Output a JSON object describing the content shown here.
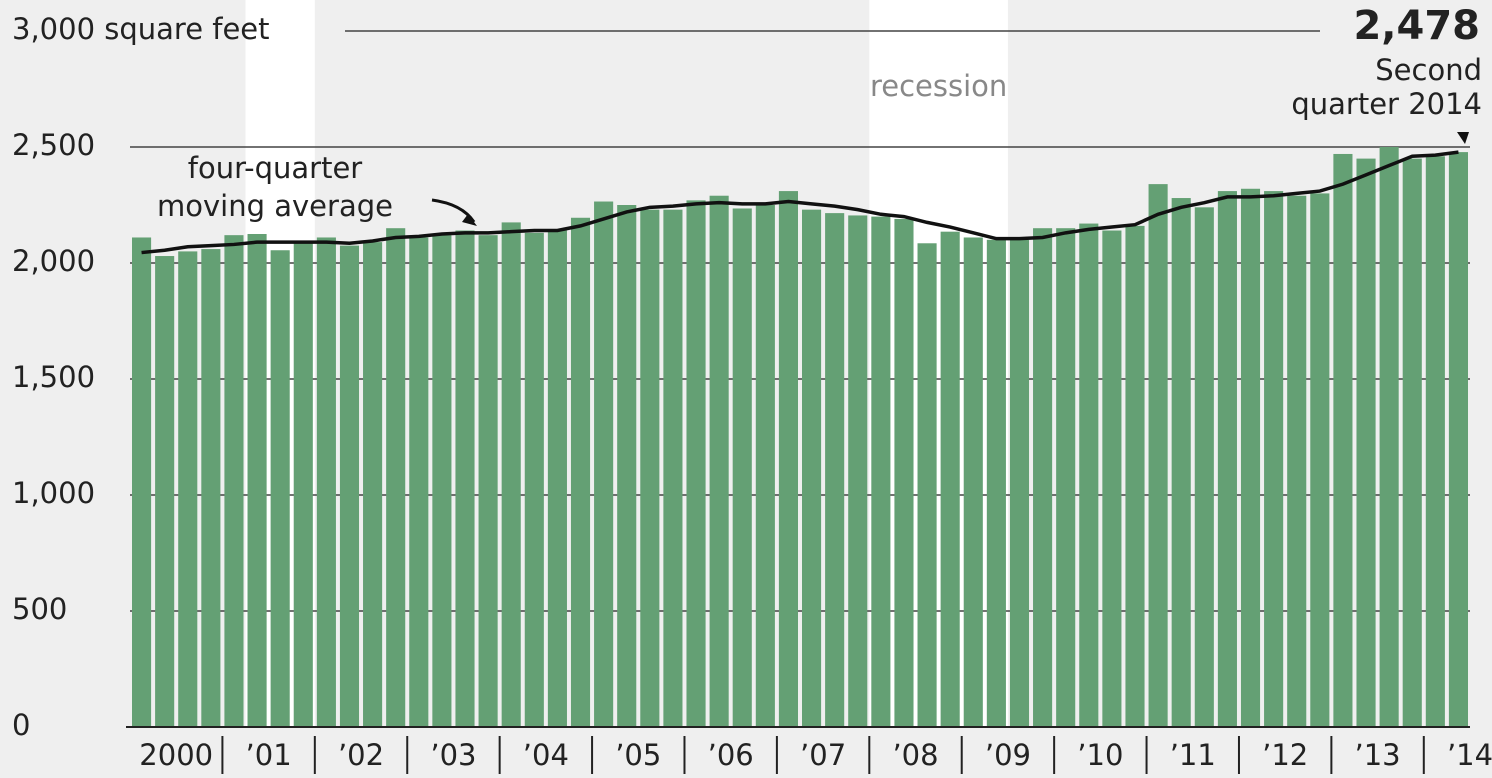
{
  "chart_data": {
    "type": "bar",
    "categories": [
      "2000",
      null,
      null,
      null,
      "’01",
      null,
      null,
      null,
      "’02",
      null,
      null,
      null,
      "’03",
      null,
      null,
      null,
      "’04",
      null,
      null,
      null,
      "’05",
      null,
      null,
      null,
      "’06",
      null,
      null,
      null,
      "’07",
      null,
      null,
      null,
      "’08",
      null,
      null,
      null,
      "’09",
      null,
      null,
      null,
      "’10",
      null,
      null,
      null,
      "’11",
      null,
      null,
      null,
      "’12",
      null,
      null,
      null,
      "’13",
      null,
      null,
      null,
      "’14",
      null
    ],
    "values": [
      2110,
      2030,
      2050,
      2060,
      2120,
      2125,
      2055,
      2090,
      2110,
      2075,
      2090,
      2150,
      2110,
      2120,
      2140,
      2120,
      2175,
      2130,
      2140,
      2195,
      2265,
      2250,
      2230,
      2230,
      2270,
      2290,
      2235,
      2250,
      2310,
      2230,
      2215,
      2205,
      2200,
      2190,
      2085,
      2135,
      2110,
      2100,
      2100,
      2150,
      2150,
      2170,
      2140,
      2160,
      2340,
      2280,
      2240,
      2310,
      2320,
      2310,
      2290,
      2300,
      2470,
      2450,
      2500,
      2450,
      2460,
      2478
    ],
    "color": "#64a074",
    "moving_average": {
      "label": [
        "four-quarter",
        "moving average"
      ],
      "color": "#111111",
      "values": [
        2045,
        2055,
        2070,
        2075,
        2080,
        2090,
        2090,
        2090,
        2090,
        2085,
        2095,
        2110,
        2115,
        2125,
        2130,
        2130,
        2135,
        2140,
        2140,
        2160,
        2190,
        2220,
        2240,
        2245,
        2255,
        2260,
        2255,
        2255,
        2265,
        2255,
        2245,
        2230,
        2210,
        2200,
        2175,
        2155,
        2130,
        2105,
        2105,
        2110,
        2130,
        2145,
        2155,
        2165,
        2210,
        2240,
        2260,
        2285,
        2285,
        2290,
        2300,
        2310,
        2340,
        2380,
        2420,
        2460,
        2465,
        2478
      ]
    },
    "recessions": [
      [
        5,
        7
      ],
      [
        32,
        37
      ]
    ],
    "recession_label": "recession",
    "annotation": {
      "value_label": "2,478",
      "lines": [
        "Second",
        "quarter 2014"
      ]
    },
    "ylim": [
      0,
      3000
    ],
    "yticks": [
      0,
      500,
      {
        "value": 1000,
        "label": "1,000"
      },
      {
        "value": 1500,
        "label": "1,500"
      },
      {
        "value": 2000,
        "label": "2,000"
      },
      {
        "value": 2500,
        "label": "2,500"
      },
      {
        "value": 3000,
        "label": "3,000 square feet"
      }
    ],
    "grid": true
  }
}
